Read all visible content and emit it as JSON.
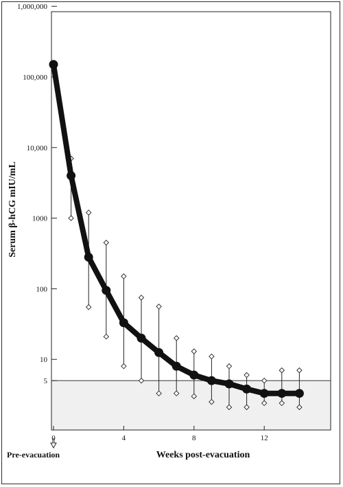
{
  "chart_data": {
    "type": "line",
    "ylabel": "Serum β-hCG mIU/mL",
    "xlabel": "Weeks post-evacuation",
    "x_annotation": "Pre-evacuation",
    "y_scale": "log",
    "ylim": [
      1,
      1000000
    ],
    "xlim": [
      0,
      15.8
    ],
    "grid": false,
    "y_ticks": [
      {
        "value": 1000000,
        "label": "1,000,000"
      },
      {
        "value": 100000,
        "label": "100,000"
      },
      {
        "value": 10000,
        "label": "10,000"
      },
      {
        "value": 1000,
        "label": "1000"
      },
      {
        "value": 100,
        "label": "100"
      },
      {
        "value": 10,
        "label": "10"
      },
      {
        "value": 5,
        "label": "5"
      }
    ],
    "x_ticks": [
      {
        "value": 0,
        "label": "0"
      },
      {
        "value": 4,
        "label": "4"
      },
      {
        "value": 8,
        "label": "8"
      },
      {
        "value": 12,
        "label": "12"
      }
    ],
    "normal_range": {
      "min": 1,
      "max": 5,
      "color": "#f0f0f0"
    },
    "series": [
      {
        "line_color": "#111111",
        "x": [
          0,
          1,
          2,
          3,
          4,
          5,
          6,
          7,
          8,
          9,
          10,
          11,
          12,
          13,
          14
        ],
        "values": [
          150000,
          4000,
          280,
          95,
          33,
          20,
          12.5,
          8,
          6,
          5,
          4.5,
          3.8,
          3.3,
          3.3,
          3.3
        ]
      }
    ],
    "error_bars": [
      {
        "x": 1,
        "low": 1000,
        "high": 7000
      },
      {
        "x": 2,
        "low": 55,
        "high": 1200
      },
      {
        "x": 3,
        "low": 21,
        "high": 450
      },
      {
        "x": 4,
        "low": 8,
        "high": 150
      },
      {
        "x": 5,
        "low": 5,
        "high": 75
      },
      {
        "x": 6,
        "low": 3.3,
        "high": 56
      },
      {
        "x": 7,
        "low": 3.3,
        "high": 20
      },
      {
        "x": 8,
        "low": 3,
        "high": 13
      },
      {
        "x": 9,
        "low": 2.5,
        "high": 11
      },
      {
        "x": 10,
        "low": 2.1,
        "high": 8
      },
      {
        "x": 11,
        "low": 2.1,
        "high": 6
      },
      {
        "x": 12,
        "low": 2.4,
        "high": 5
      },
      {
        "x": 13,
        "low": 2.4,
        "high": 7
      },
      {
        "x": 14,
        "low": 2.1,
        "high": 7
      }
    ]
  }
}
